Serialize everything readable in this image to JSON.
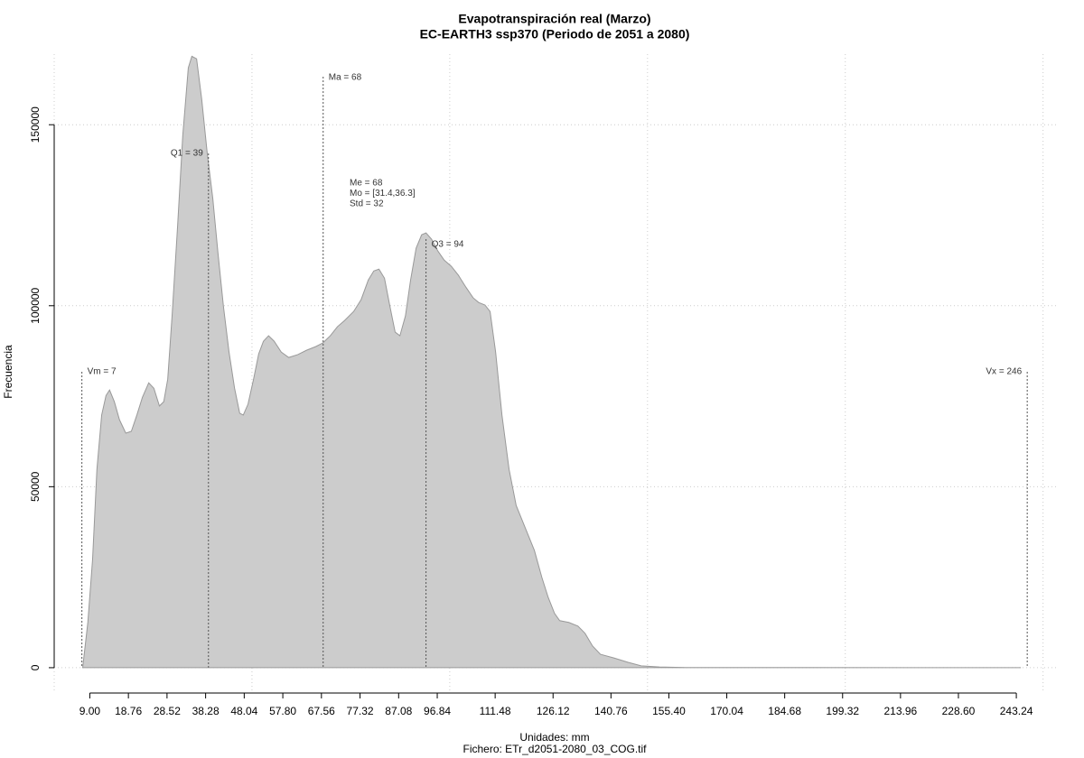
{
  "chart_data": {
    "type": "area",
    "title": "Evapotranspiración real (Marzo)",
    "subtitle": "EC-EARTH3 ssp370 (Periodo de 2051 a 2080)",
    "x_label": "Unidades: mm",
    "caption": "Fichero: ETr_d2051-2080_03_COG.tif",
    "y_label": "Frecuencia",
    "color": "#cccccc",
    "line_color": "#999999",
    "x": [
      7.2,
      8.5,
      9.7,
      10.8,
      12,
      13.1,
      14,
      15.2,
      16.5,
      18.1,
      19.5,
      20.9,
      22.3,
      23.9,
      25.2,
      26.6,
      27.7,
      28.7,
      29.8,
      31.2,
      32.5,
      33.9,
      34.8,
      36,
      37.3,
      38.7,
      40.1,
      41.4,
      42.8,
      44.2,
      45.6,
      46.9,
      47.8,
      49,
      50.4,
      51.7,
      52.9,
      54.2,
      55.6,
      57.4,
      59.3,
      61.6,
      63.8,
      66.1,
      67.9,
      69.8,
      71.6,
      73.4,
      75.7,
      77.6,
      79.4,
      80.8,
      82.1,
      83.5,
      84.9,
      86.2,
      87.4,
      88.8,
      90.1,
      91.5,
      92.9,
      94,
      95.4,
      97,
      98.6,
      100.4,
      102.2,
      104.1,
      105.9,
      107.3,
      108.9,
      110.2,
      111.6,
      113.2,
      115,
      116.8,
      119.1,
      121.4,
      123.3,
      124.9,
      126.5,
      127.8,
      130.1,
      132.4,
      134.2,
      136.1,
      138.1,
      141.5,
      145,
      148.4,
      153,
      159.8,
      244.4
    ],
    "values": [
      0,
      12460,
      29900,
      54800,
      69800,
      75200,
      76700,
      73500,
      68500,
      64800,
      65300,
      69800,
      74700,
      78700,
      77200,
      72300,
      73500,
      79700,
      97200,
      122100,
      147000,
      165700,
      168900,
      168200,
      157000,
      142000,
      129600,
      114600,
      99700,
      87200,
      77200,
      70300,
      69800,
      72800,
      79700,
      86700,
      90200,
      91700,
      90200,
      87200,
      85700,
      86500,
      87700,
      88700,
      89700,
      91700,
      94200,
      95900,
      98400,
      101700,
      107100,
      109600,
      110100,
      107600,
      99700,
      92700,
      91700,
      97200,
      107100,
      115900,
      119600,
      120100,
      118400,
      115100,
      112600,
      110900,
      108400,
      105100,
      102200,
      100900,
      100200,
      98400,
      87200,
      69800,
      54800,
      44800,
      38600,
      32400,
      24900,
      19400,
      15000,
      13000,
      12500,
      11500,
      9500,
      6000,
      3700,
      2700,
      1500,
      500,
      200,
      50,
      0
    ],
    "xlim": [
      0,
      253.5
    ],
    "ylim": [
      -7000,
      169500
    ],
    "xticks": [
      {
        "value": 9,
        "label": "9.00"
      },
      {
        "value": 18.76,
        "label": "18.76"
      },
      {
        "value": 28.52,
        "label": "28.52"
      },
      {
        "value": 38.28,
        "label": "38.28"
      },
      {
        "value": 48.04,
        "label": "48.04"
      },
      {
        "value": 57.8,
        "label": "57.80"
      },
      {
        "value": 67.56,
        "label": "67.56"
      },
      {
        "value": 77.32,
        "label": "77.32"
      },
      {
        "value": 87.08,
        "label": "87.08"
      },
      {
        "value": 96.84,
        "label": "96.84"
      },
      {
        "value": 111.48,
        "label": "111.48"
      },
      {
        "value": 126.12,
        "label": "126.12"
      },
      {
        "value": 140.76,
        "label": "140.76"
      },
      {
        "value": 155.4,
        "label": "155.40"
      },
      {
        "value": 170.04,
        "label": "170.04"
      },
      {
        "value": 184.68,
        "label": "184.68"
      },
      {
        "value": 199.32,
        "label": "199.32"
      },
      {
        "value": 213.96,
        "label": "213.96"
      },
      {
        "value": 228.6,
        "label": "228.60"
      },
      {
        "value": 243.24,
        "label": "243.24"
      }
    ],
    "yticks": [
      0,
      50000,
      100000,
      150000
    ],
    "xgrid": [
      0,
      50,
      100,
      150,
      200,
      250
    ],
    "grid": true,
    "annotations": [
      {
        "text": "Vm = 7",
        "x": 7
      },
      {
        "text": "Q1 = 39",
        "x": 39
      },
      {
        "text": "Ma = 68",
        "x": 68
      },
      {
        "text": "Q3 = 94",
        "x": 94
      },
      {
        "text": "Vx = 246",
        "x": 246
      }
    ],
    "stats": [
      "Me = 68",
      "Mo = [31.4,36.3]",
      "Std = 32"
    ]
  }
}
